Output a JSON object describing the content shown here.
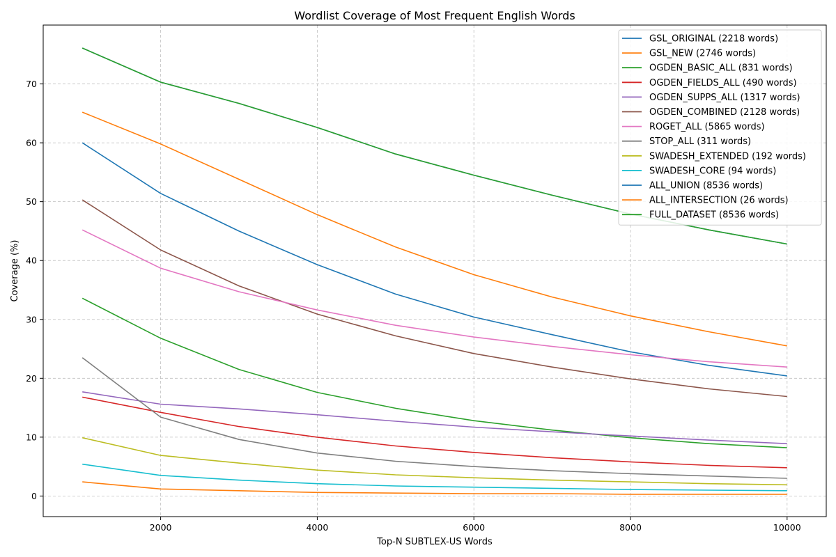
{
  "chart_data": {
    "type": "line",
    "title": "Wordlist Coverage of Most Frequent English Words",
    "xlabel": "Top-N SUBTLEX-US Words",
    "ylabel": "Coverage (%)",
    "xlim": [
      500,
      10500
    ],
    "ylim": [
      -3.5,
      80
    ],
    "xticks": [
      2000,
      4000,
      6000,
      8000,
      10000
    ],
    "yticks": [
      0,
      10,
      20,
      30,
      40,
      50,
      60,
      70
    ],
    "grid": true,
    "legend_position": "top-right",
    "x": [
      1000,
      2000,
      3000,
      4000,
      5000,
      6000,
      7000,
      8000,
      9000,
      10000
    ],
    "series": [
      {
        "name": "GSL_ORIGINAL (2218 words)",
        "color": "#1f77b4",
        "values": [
          60.0,
          51.4,
          45.0,
          39.3,
          34.3,
          30.4,
          27.4,
          24.5,
          22.2,
          20.4
        ]
      },
      {
        "name": "GSL_NEW (2746 words)",
        "color": "#ff7f0e",
        "values": [
          65.2,
          59.8,
          53.8,
          47.8,
          42.3,
          37.6,
          33.8,
          30.6,
          27.9,
          25.5
        ]
      },
      {
        "name": "OGDEN_BASIC_ALL (831 words)",
        "color": "#2ca02c",
        "values": [
          33.6,
          26.8,
          21.5,
          17.6,
          14.9,
          12.8,
          11.2,
          9.9,
          8.9,
          8.2
        ]
      },
      {
        "name": "OGDEN_FIELDS_ALL (490 words)",
        "color": "#d62728",
        "values": [
          16.8,
          14.2,
          11.8,
          10.0,
          8.5,
          7.4,
          6.5,
          5.8,
          5.2,
          4.8
        ]
      },
      {
        "name": "OGDEN_SUPPS_ALL (1317 words)",
        "color": "#9467bd",
        "values": [
          17.7,
          15.6,
          14.8,
          13.8,
          12.7,
          11.7,
          10.9,
          10.2,
          9.5,
          8.9
        ]
      },
      {
        "name": "OGDEN_COMBINED (2128 words)",
        "color": "#8c564b",
        "values": [
          50.3,
          41.8,
          35.7,
          30.9,
          27.2,
          24.2,
          21.9,
          19.9,
          18.2,
          16.9
        ]
      },
      {
        "name": "ROGET_ALL (5865 words)",
        "color": "#e377c2",
        "values": [
          45.2,
          38.7,
          34.7,
          31.6,
          29.0,
          27.0,
          25.4,
          24.0,
          22.8,
          21.9
        ]
      },
      {
        "name": "STOP_ALL (311 words)",
        "color": "#7f7f7f",
        "values": [
          23.5,
          13.4,
          9.6,
          7.3,
          5.9,
          5.0,
          4.3,
          3.8,
          3.4,
          3.0
        ]
      },
      {
        "name": "SWADESH_EXTENDED (192 words)",
        "color": "#bcbd22",
        "values": [
          9.9,
          6.9,
          5.6,
          4.4,
          3.6,
          3.1,
          2.7,
          2.4,
          2.1,
          1.9
        ]
      },
      {
        "name": "SWADESH_CORE (94 words)",
        "color": "#17becf",
        "values": [
          5.4,
          3.5,
          2.7,
          2.1,
          1.7,
          1.5,
          1.3,
          1.1,
          1.0,
          0.9
        ]
      },
      {
        "name": "ALL_UNION (8536 words)",
        "color": "#1f77b4",
        "values": [
          76.1,
          70.3,
          66.7,
          62.6,
          58.1,
          54.5,
          51.1,
          47.9,
          45.2,
          42.8
        ]
      },
      {
        "name": "ALL_INTERSECTION (26 words)",
        "color": "#ff7f0e",
        "values": [
          2.4,
          1.2,
          0.9,
          0.6,
          0.5,
          0.4,
          0.4,
          0.3,
          0.3,
          0.3
        ]
      },
      {
        "name": "FULL_DATASET (8536 words)",
        "color": "#2ca02c",
        "values": [
          76.1,
          70.3,
          66.7,
          62.6,
          58.1,
          54.5,
          51.1,
          47.9,
          45.2,
          42.8
        ]
      }
    ]
  }
}
